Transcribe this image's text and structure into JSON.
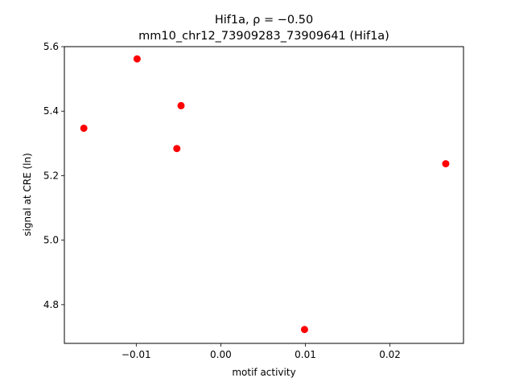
{
  "chart_data": {
    "type": "scatter",
    "title_line1": "Hif1a, ρ = −0.50",
    "title_line2": "mm10_chr12_73909283_73909641 (Hif1a)",
    "xlabel": "motif activity",
    "ylabel": "signal at CRE (ln)",
    "xlim": [
      -0.0185,
      0.0287
    ],
    "ylim": [
      4.68,
      5.6
    ],
    "x_ticks": [
      {
        "value": -0.01,
        "label": "−0.01"
      },
      {
        "value": 0.0,
        "label": "0.00"
      },
      {
        "value": 0.01,
        "label": "0.01"
      },
      {
        "value": 0.02,
        "label": "0.02"
      }
    ],
    "y_ticks": [
      {
        "value": 4.8,
        "label": "4.8"
      },
      {
        "value": 5.0,
        "label": "5.0"
      },
      {
        "value": 5.2,
        "label": "5.2"
      },
      {
        "value": 5.4,
        "label": "5.4"
      },
      {
        "value": 5.6,
        "label": "5.6"
      }
    ],
    "series": [
      {
        "color": "#ff0000",
        "points": [
          {
            "x": -0.0162,
            "y": 5.347
          },
          {
            "x": -0.0099,
            "y": 5.562
          },
          {
            "x": -0.0047,
            "y": 5.417
          },
          {
            "x": -0.0052,
            "y": 5.284
          },
          {
            "x": 0.0099,
            "y": 4.723
          },
          {
            "x": 0.0266,
            "y": 5.237
          }
        ]
      }
    ],
    "grid": false
  }
}
